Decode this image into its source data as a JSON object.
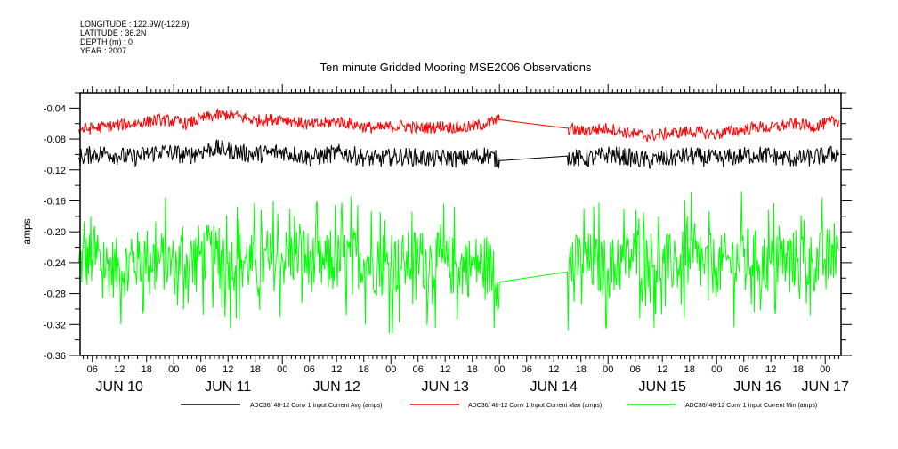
{
  "header": {
    "longitude": "LONGITUDE : 122.9W(-122.9)",
    "latitude": "LATITUDE : 36.2N",
    "depth": "DEPTH (m) : 0",
    "year": "YEAR : 2007"
  },
  "chart_data": {
    "type": "line",
    "title": "Ten minute Gridded Mooring MSE2006 Observations",
    "xlabel": "",
    "ylabel": "amps",
    "ylim": [
      -0.36,
      -0.02
    ],
    "yticks": [
      -0.04,
      -0.08,
      -0.12,
      -0.16,
      -0.2,
      -0.24,
      -0.28,
      -0.32,
      -0.36
    ],
    "ytick_labels": [
      "-0.04",
      "-0.08",
      "-0.12",
      "-0.16",
      "-0.20",
      "-0.24",
      "-0.28",
      "-0.32",
      "-0.36"
    ],
    "x_units": "hours since Jun 10 00:00 2007",
    "xlim": [
      3.3,
      171.5
    ],
    "xtick_hours": [
      6,
      12,
      18,
      24,
      30,
      36,
      42,
      48,
      54,
      60,
      66,
      72,
      78,
      84,
      90,
      96,
      102,
      108,
      114,
      120,
      126,
      132,
      138,
      144,
      150,
      156,
      162,
      168
    ],
    "xtick_labels": [
      "06",
      "12",
      "18",
      "00",
      "06",
      "12",
      "18",
      "00",
      "06",
      "12",
      "18",
      "00",
      "06",
      "12",
      "18",
      "00",
      "06",
      "12",
      "18",
      "00",
      "06",
      "12",
      "18",
      "00",
      "06",
      "12",
      "18",
      "00"
    ],
    "day_labels": [
      {
        "label": "JUN 10",
        "hour": 12
      },
      {
        "label": "JUN 11",
        "hour": 36
      },
      {
        "label": "JUN 12",
        "hour": 60
      },
      {
        "label": "JUN 13",
        "hour": 84
      },
      {
        "label": "JUN 14",
        "hour": 108
      },
      {
        "label": "JUN 15",
        "hour": 132
      },
      {
        "label": "JUN 16",
        "hour": 153
      },
      {
        "label": "JUN 17",
        "hour": 168
      }
    ],
    "x": [
      3,
      6,
      9,
      12,
      15,
      18,
      21,
      24,
      27,
      30,
      33,
      36,
      39,
      42,
      45,
      48,
      51,
      54,
      57,
      60,
      63,
      66,
      69,
      72,
      75,
      78,
      81,
      84,
      87,
      90,
      93,
      96,
      111,
      114,
      117,
      120,
      123,
      126,
      129,
      132,
      135,
      138,
      141,
      144,
      147,
      150,
      153,
      156,
      159,
      162,
      165,
      168,
      171
    ],
    "series": [
      {
        "name": "ADC36/ 48-12 Conv 1 Input Current Avg (amps)",
        "color": "#000000",
        "values": [
          -0.104,
          -0.1,
          -0.098,
          -0.102,
          -0.104,
          -0.1,
          -0.096,
          -0.098,
          -0.102,
          -0.096,
          -0.092,
          -0.094,
          -0.098,
          -0.1,
          -0.098,
          -0.096,
          -0.1,
          -0.104,
          -0.102,
          -0.098,
          -0.1,
          -0.104,
          -0.106,
          -0.104,
          -0.102,
          -0.104,
          -0.106,
          -0.104,
          -0.106,
          -0.104,
          -0.1,
          -0.108,
          -0.102,
          -0.106,
          -0.104,
          -0.1,
          -0.102,
          -0.106,
          -0.108,
          -0.106,
          -0.104,
          -0.102,
          -0.104,
          -0.106,
          -0.104,
          -0.102,
          -0.1,
          -0.102,
          -0.104,
          -0.106,
          -0.104,
          -0.102,
          -0.098
        ]
      },
      {
        "name": "ADC36/ 48-12 Conv 1 Input Current Max (amps)",
        "color": "#ff0000",
        "values": [
          -0.068,
          -0.066,
          -0.064,
          -0.062,
          -0.06,
          -0.058,
          -0.055,
          -0.057,
          -0.06,
          -0.054,
          -0.05,
          -0.048,
          -0.052,
          -0.056,
          -0.055,
          -0.053,
          -0.058,
          -0.062,
          -0.06,
          -0.057,
          -0.06,
          -0.064,
          -0.066,
          -0.064,
          -0.063,
          -0.066,
          -0.065,
          -0.063,
          -0.066,
          -0.064,
          -0.06,
          -0.055,
          -0.066,
          -0.07,
          -0.068,
          -0.066,
          -0.07,
          -0.074,
          -0.076,
          -0.074,
          -0.072,
          -0.07,
          -0.072,
          -0.074,
          -0.07,
          -0.068,
          -0.064,
          -0.066,
          -0.062,
          -0.06,
          -0.064,
          -0.06,
          -0.056
        ]
      },
      {
        "name": "ADC36/ 48-12 Conv 1 Input Current Min (amps)",
        "color": "#00ff00",
        "values": [
          -0.24,
          -0.236,
          -0.244,
          -0.248,
          -0.24,
          -0.232,
          -0.236,
          -0.244,
          -0.238,
          -0.228,
          -0.232,
          -0.24,
          -0.236,
          -0.244,
          -0.24,
          -0.234,
          -0.23,
          -0.238,
          -0.244,
          -0.24,
          -0.232,
          -0.236,
          -0.244,
          -0.246,
          -0.24,
          -0.234,
          -0.238,
          -0.242,
          -0.246,
          -0.244,
          -0.24,
          -0.265,
          -0.252,
          -0.236,
          -0.242,
          -0.248,
          -0.24,
          -0.23,
          -0.236,
          -0.244,
          -0.24,
          -0.236,
          -0.242,
          -0.246,
          -0.238,
          -0.232,
          -0.236,
          -0.242,
          -0.238,
          -0.234,
          -0.24,
          -0.236,
          -0.224
        ]
      }
    ],
    "legend_placement": "bottom",
    "grid": false
  }
}
